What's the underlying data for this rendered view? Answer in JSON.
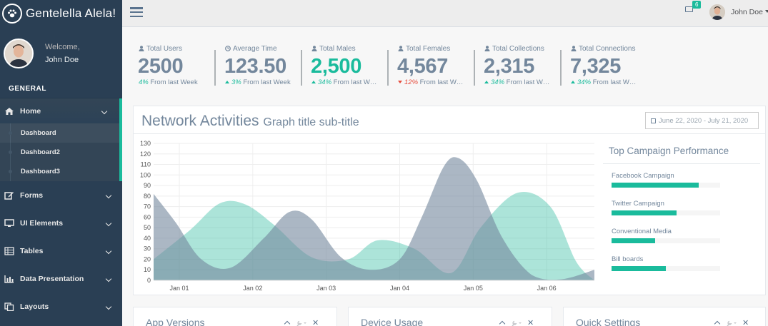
{
  "brand": {
    "title": "Gentelella Alela!",
    "icon": "paw-icon"
  },
  "profile": {
    "welcome": "Welcome,",
    "name": "John Doe"
  },
  "sidebar": {
    "section": "GENERAL",
    "home": {
      "label": "Home",
      "icon": "home-icon"
    },
    "home_sub": [
      "Dashboard",
      "Dashboard2",
      "Dashboard3"
    ],
    "items": [
      {
        "label": "Forms",
        "icon": "edit-icon"
      },
      {
        "label": "UI Elements",
        "icon": "desktop-icon"
      },
      {
        "label": "Tables",
        "icon": "table-icon"
      },
      {
        "label": "Data Presentation",
        "icon": "bar-chart-icon"
      },
      {
        "label": "Layouts",
        "icon": "clone-icon"
      }
    ]
  },
  "topnav": {
    "badge": "6",
    "user": "John Doe"
  },
  "tiles": [
    {
      "label": "Total Users",
      "value": "2500",
      "pct": "4%",
      "trend": "none",
      "tail": "From last Week",
      "color": "#73879c"
    },
    {
      "label": "Average Time",
      "value": "123.50",
      "pct": "3%",
      "trend": "up",
      "tail": "From last Week",
      "color": "#73879c"
    },
    {
      "label": "Total Males",
      "value": "2,500",
      "pct": "34%",
      "trend": "up",
      "tail": "From last W…",
      "color": "#1abb9c"
    },
    {
      "label": "Total Females",
      "value": "4,567",
      "pct": "12%",
      "trend": "down",
      "tail": "From last W…",
      "color": "#73879c"
    },
    {
      "label": "Total Collections",
      "value": "2,315",
      "pct": "34%",
      "trend": "up",
      "tail": "From last W…",
      "color": "#73879c"
    },
    {
      "label": "Total Connections",
      "value": "7,325",
      "pct": "34%",
      "trend": "up",
      "tail": "From last W…",
      "color": "#73879c"
    }
  ],
  "graph": {
    "title": "Network Activities",
    "subtitle": "Graph title sub-title",
    "date_range": "June 22, 2020 - July 21, 2020"
  },
  "chart_data": {
    "type": "area",
    "x_ticks": [
      "Jan 01",
      "Jan 02",
      "Jan 03",
      "Jan 04",
      "Jan 05",
      "Jan 06"
    ],
    "x_domain": [
      0.65,
      6.65
    ],
    "ylim": [
      0,
      130
    ],
    "y_ticks": [
      0,
      10,
      20,
      30,
      40,
      50,
      60,
      70,
      80,
      90,
      100,
      110,
      120,
      130
    ],
    "grid": true,
    "series": [
      {
        "color": "#96ca59",
        "fill": "rgba(38,185,154,0.38)",
        "points": [
          [
            0.65,
            20
          ],
          [
            1.15,
            48
          ],
          [
            1.55,
            73
          ],
          [
            1.9,
            72
          ],
          [
            2.3,
            52
          ],
          [
            2.8,
            22
          ],
          [
            3.3,
            20
          ],
          [
            3.7,
            38
          ],
          [
            4.2,
            30
          ],
          [
            4.7,
            7
          ],
          [
            5.1,
            50
          ],
          [
            5.6,
            83
          ],
          [
            6.05,
            70
          ],
          [
            6.4,
            18
          ],
          [
            6.65,
            0
          ]
        ]
      },
      {
        "color": "#73879c",
        "fill": "rgba(115,135,156,0.6)",
        "points": [
          [
            0.65,
            82
          ],
          [
            0.95,
            55
          ],
          [
            1.3,
            20
          ],
          [
            1.7,
            12
          ],
          [
            2.15,
            40
          ],
          [
            2.5,
            65
          ],
          [
            2.8,
            58
          ],
          [
            3.2,
            22
          ],
          [
            3.6,
            10
          ],
          [
            4.0,
            20
          ],
          [
            4.3,
            60
          ],
          [
            4.6,
            108
          ],
          [
            4.8,
            116
          ],
          [
            5.05,
            95
          ],
          [
            5.4,
            40
          ],
          [
            5.8,
            5
          ],
          [
            6.2,
            1
          ],
          [
            6.65,
            10
          ]
        ]
      }
    ]
  },
  "campaigns": {
    "title": "Top Campaign Performance",
    "items": [
      {
        "name": "Facebook Campaign",
        "value": 0.8
      },
      {
        "name": "Twitter Campaign",
        "value": 0.6
      },
      {
        "name": "Conventional Media",
        "value": 0.4
      },
      {
        "name": "Bill boards",
        "value": 0.5
      }
    ]
  },
  "bottom_panels": [
    {
      "title": "App Versions"
    },
    {
      "title": "Device Usage"
    },
    {
      "title": "Quick Settings"
    }
  ]
}
